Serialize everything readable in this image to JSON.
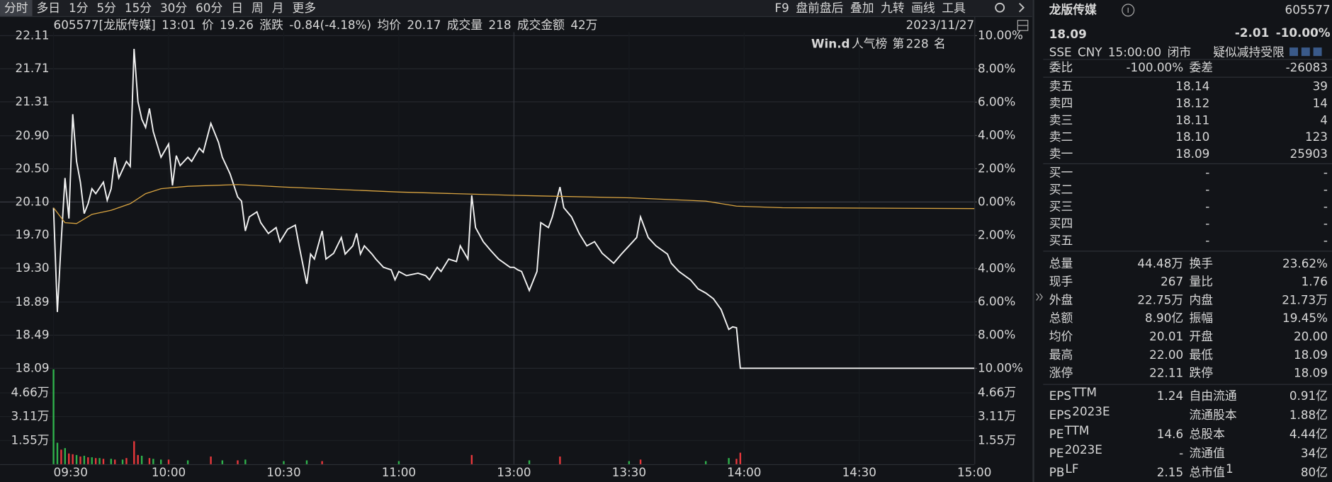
{
  "toolbar": {
    "tabs": [
      "分时",
      "多日",
      "1分",
      "5分",
      "15分",
      "30分",
      "60分",
      "日",
      "周",
      "月",
      "更多"
    ],
    "tools": [
      "F9",
      "盘前盘后",
      "叠加",
      "九转",
      "画线",
      "工具"
    ]
  },
  "info_bar": {
    "items": [
      {
        "text": "605577[龙版传媒]",
        "color": "#d8d8d8"
      },
      {
        "text": "13:01",
        "color": "#3fc8d8"
      },
      {
        "text": "价",
        "color": "#d8d8d8"
      },
      {
        "text": "19.26",
        "color": "#2fb24c"
      },
      {
        "text": "涨跌",
        "color": "#d8d8d8"
      },
      {
        "text": "-0.84(-4.18%)",
        "color": "#2fb24c"
      },
      {
        "text": "均价",
        "color": "#d8d8d8"
      },
      {
        "text": "20.17",
        "color": "#e8383c"
      },
      {
        "text": "成交量",
        "color": "#d8d8d8"
      },
      {
        "text": "218",
        "color": "#d8d8d8"
      },
      {
        "text": "成交金额",
        "color": "#d8d8d8"
      },
      {
        "text": "42万",
        "color": "#d8d8d8"
      }
    ],
    "date": "2023/11/27"
  },
  "rank": {
    "brand": "Win.d",
    "label": "人气榜",
    "prefix": "第",
    "value": "228",
    "suffix": "名"
  },
  "chart_data": [
    {
      "type": "line",
      "xlim": [
        0,
        240
      ],
      "ylim": [
        18.09,
        22.11
      ],
      "y2lim": [
        -10,
        10
      ],
      "yticks": [
        22.11,
        21.71,
        21.31,
        {
          "value": 20.9,
          "label": "20.90"
        },
        {
          "value": 20.5,
          "label": "20.50"
        },
        {
          "value": 20.1,
          "label": "20.10"
        },
        {
          "value": 19.7,
          "label": "19.70"
        },
        {
          "value": 19.3,
          "label": "19.30"
        },
        18.89,
        18.49,
        18.09
      ],
      "y2ticks": [
        {
          "value": 10,
          "label": "10.00%"
        },
        {
          "value": 8,
          "label": "8.00%"
        },
        {
          "value": 6,
          "label": "6.00%"
        },
        {
          "value": 4,
          "label": "4.00%"
        },
        {
          "value": 2,
          "label": "2.00%"
        },
        {
          "value": 0,
          "label": "0.00%"
        },
        {
          "value": -2,
          "label": "2.00%"
        },
        {
          "value": -4,
          "label": "4.00%"
        },
        {
          "value": -6,
          "label": "6.00%"
        },
        {
          "value": -8,
          "label": "8.00%"
        },
        {
          "value": -10,
          "label": "10.00%"
        }
      ],
      "series": [
        {
          "color": "#f2f2f2",
          "x": [
            0,
            1,
            2,
            3,
            4,
            5,
            6,
            7,
            8,
            9,
            10,
            11,
            13,
            14,
            15,
            16,
            17,
            19,
            20,
            21,
            22,
            23,
            24,
            25,
            26,
            28,
            30,
            31,
            32,
            33,
            35,
            36,
            38,
            39,
            41,
            43,
            44,
            46,
            48,
            49,
            50,
            51,
            53,
            54,
            56,
            58,
            59,
            61,
            63,
            64,
            66,
            67,
            68,
            70,
            71,
            73,
            75,
            76,
            78,
            79,
            80,
            81,
            83,
            84,
            86,
            88,
            89,
            90,
            92,
            95,
            97,
            98,
            100,
            101,
            103,
            105,
            106,
            108,
            109,
            110,
            112,
            114,
            116,
            119,
            120,
            121,
            122,
            124,
            126,
            127,
            129,
            130,
            132,
            133,
            135,
            137,
            139,
            141,
            143,
            146,
            148,
            150,
            152,
            153,
            155,
            157,
            160,
            161,
            163,
            166,
            168,
            170,
            172,
            174,
            176,
            177,
            178,
            179,
            240
          ],
          "values": [
            20.03,
            18.77,
            19.62,
            20.39,
            19.9,
            21.16,
            20.59,
            20.34,
            19.96,
            20.08,
            20.26,
            20.2,
            20.34,
            20.12,
            20.26,
            20.64,
            20.39,
            20.59,
            20.53,
            21.95,
            21.31,
            21.1,
            21.0,
            21.23,
            20.95,
            20.64,
            20.8,
            20.3,
            20.66,
            20.54,
            20.64,
            20.59,
            20.75,
            20.7,
            21.05,
            20.82,
            20.64,
            20.44,
            20.16,
            20.11,
            19.75,
            19.92,
            19.98,
            19.85,
            19.72,
            19.79,
            19.62,
            19.77,
            19.82,
            19.57,
            19.11,
            19.47,
            19.41,
            19.75,
            19.41,
            19.48,
            19.67,
            19.47,
            19.57,
            19.72,
            19.47,
            19.57,
            19.47,
            19.41,
            19.31,
            19.28,
            19.16,
            19.26,
            19.21,
            19.24,
            19.21,
            19.16,
            19.31,
            19.26,
            19.41,
            19.38,
            19.57,
            19.41,
            20.18,
            19.79,
            19.62,
            19.51,
            19.41,
            19.31,
            19.31,
            19.28,
            19.26,
            19.03,
            19.26,
            19.85,
            19.79,
            19.92,
            20.28,
            20.03,
            19.92,
            19.72,
            19.57,
            19.62,
            19.48,
            19.36,
            19.47,
            19.57,
            19.67,
            19.92,
            19.67,
            19.57,
            19.47,
            19.36,
            19.26,
            19.16,
            19.05,
            19.0,
            18.93,
            18.8,
            18.56,
            18.59,
            18.58,
            18.09,
            18.09
          ]
        },
        {
          "color": "#d9a441",
          "x": [
            0,
            3,
            6,
            10,
            15,
            20,
            24,
            28,
            35,
            48,
            60,
            90,
            120,
            150,
            170,
            178,
            190,
            240
          ],
          "values": [
            20.03,
            19.85,
            19.84,
            19.95,
            20.0,
            20.08,
            20.2,
            20.26,
            20.29,
            20.31,
            20.28,
            20.22,
            20.18,
            20.15,
            20.11,
            20.05,
            20.03,
            20.02
          ]
        }
      ]
    },
    {
      "type": "bar",
      "xlim": [
        0,
        240
      ],
      "ylim": [
        0,
        62100
      ],
      "yticks": [
        {
          "value": 46600,
          "label": "4.66万"
        },
        {
          "value": 31100,
          "label": "3.11万"
        },
        {
          "value": 15500,
          "label": "1.55万"
        }
      ],
      "xticks": [
        {
          "value": 0,
          "label": "09:30"
        },
        {
          "value": 30,
          "label": "10:00"
        },
        {
          "value": 60,
          "label": "10:30"
        },
        {
          "value": 90,
          "label": "11:00"
        },
        {
          "value": 120,
          "label": "13:00"
        },
        {
          "value": 150,
          "label": "13:30"
        },
        {
          "value": 180,
          "label": "14:00"
        },
        {
          "value": 210,
          "label": "14:30"
        },
        {
          "value": 240,
          "label": "15:00"
        }
      ],
      "series": [
        {
          "color": "#e8383c",
          "x": [
            2,
            4,
            5,
            7,
            9,
            11,
            13,
            16,
            19,
            21,
            22,
            25,
            30,
            41,
            48,
            70,
            109,
            132,
            153,
            178,
            179
          ],
          "values": [
            9500,
            7000,
            6500,
            5000,
            4500,
            4000,
            3500,
            3000,
            4000,
            15000,
            6000,
            4000,
            3000,
            5000,
            2500,
            2000,
            6000,
            5000,
            3000,
            3500,
            7500
          ]
        },
        {
          "color": "#2fb24c",
          "x": [
            0,
            1,
            3,
            6,
            8,
            10,
            12,
            15,
            18,
            23,
            26,
            28,
            35,
            44,
            50,
            60,
            66,
            90,
            124,
            150,
            170,
            176
          ],
          "values": [
            62000,
            14000,
            10500,
            6000,
            5500,
            4500,
            4000,
            3500,
            3000,
            5500,
            3500,
            3000,
            2500,
            2500,
            3000,
            2000,
            2500,
            2000,
            2500,
            2000,
            2000,
            4000
          ]
        }
      ]
    }
  ],
  "quote": {
    "name": "龙版传媒",
    "code": "605577",
    "price": "18.09",
    "change": "-2.01",
    "pct": "-10.00%",
    "meta": [
      "SSE",
      "CNY",
      "15:00:00",
      "闭市"
    ],
    "note": "疑似减持受限"
  },
  "ratio": [
    {
      "label": "委比",
      "value": "-100.00%",
      "color": "#2fb24c"
    },
    {
      "label": "委差",
      "value": "-26083",
      "color": "#2fb24c"
    }
  ],
  "asks": [
    {
      "label": "卖五",
      "price": "18.14",
      "vol": "39"
    },
    {
      "label": "卖四",
      "price": "18.12",
      "vol": "14"
    },
    {
      "label": "卖三",
      "price": "18.11",
      "vol": "4"
    },
    {
      "label": "卖二",
      "price": "18.10",
      "vol": "123"
    },
    {
      "label": "卖一",
      "price": "18.09",
      "vol": "25903"
    }
  ],
  "bids": [
    {
      "label": "买一",
      "price": "-",
      "vol": "-"
    },
    {
      "label": "买二",
      "price": "-",
      "vol": "-"
    },
    {
      "label": "买三",
      "price": "-",
      "vol": "-"
    },
    {
      "label": "买四",
      "price": "-",
      "vol": "-"
    },
    {
      "label": "买五",
      "price": "-",
      "vol": "-"
    }
  ],
  "stats": [
    [
      {
        "label": "总量",
        "value": "44.48万"
      },
      {
        "label": "换手",
        "value": "23.62%"
      }
    ],
    [
      {
        "label": "现手",
        "value": "267"
      },
      {
        "label": "量比",
        "value": "1.76"
      }
    ],
    [
      {
        "label": "外盘",
        "value": "22.75万",
        "color": "#e8383c"
      },
      {
        "label": "内盘",
        "value": "21.73万",
        "color": "#2fb24c"
      }
    ],
    [
      {
        "label": "总额",
        "value": "8.90亿"
      },
      {
        "label": "振幅",
        "value": "19.45%"
      }
    ],
    [
      {
        "label": "均价",
        "value": "20.01",
        "color": "#2fb24c"
      },
      {
        "label": "开盘",
        "value": "20.00",
        "color": "#2fb24c"
      }
    ],
    [
      {
        "label": "最高",
        "value": "22.00",
        "color": "#e8383c"
      },
      {
        "label": "最低",
        "value": "18.09",
        "color": "#2fb24c"
      }
    ],
    [
      {
        "label": "涨停",
        "value": "22.11",
        "color": "#e8383c"
      },
      {
        "label": "跌停",
        "value": "18.09",
        "color": "#2fb24c"
      }
    ]
  ],
  "fundamentals": [
    [
      {
        "label": "EPS",
        "sup": "TTM",
        "value": "1.24"
      },
      {
        "label": "自由流通",
        "value": "0.91亿"
      }
    ],
    [
      {
        "label": "EPS",
        "sup": "2023E"
      },
      {
        "label": "流通股本",
        "value": "1.88亿"
      }
    ],
    [
      {
        "label": "PE",
        "sup": "TTM",
        "value": "14.6"
      },
      {
        "label": "总股本",
        "value": "4.44亿"
      }
    ],
    [
      {
        "label": "PE",
        "sup": "2023E",
        "value": "-"
      },
      {
        "label": "流通值",
        "value": "34亿"
      }
    ],
    [
      {
        "label": "PB",
        "sup": "LF",
        "value": "2.15"
      },
      {
        "label": "总市值",
        "sup": "1",
        "value": "80亿"
      }
    ]
  ]
}
